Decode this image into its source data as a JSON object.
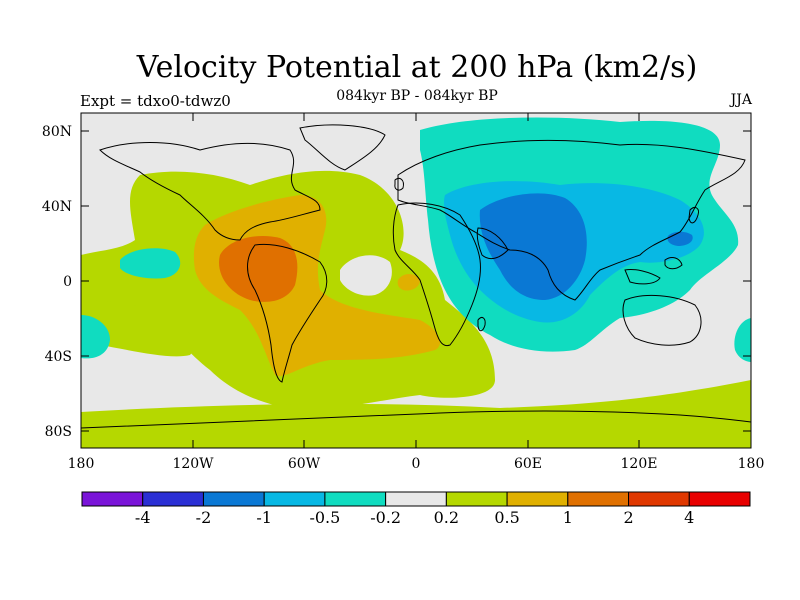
{
  "title": "Velocity Potential at 200 hPa (km2/s)",
  "subtitle": "084kyr BP - 084kyr BP",
  "experiment": "Expt = tdxo0-tdwz0",
  "season": "JJA",
  "lat_ticks": [
    "80N",
    "40N",
    "0",
    "40S",
    "80S"
  ],
  "lon_ticks": [
    "180",
    "120W",
    "60W",
    "0",
    "60E",
    "120E",
    "180"
  ],
  "colorbar": {
    "labels": [
      "-4",
      "-2",
      "-1",
      "-0.5",
      "-0.2",
      "0.2",
      "0.5",
      "1",
      "2",
      "4"
    ],
    "colors": [
      "#7a14d8",
      "#2b2fd4",
      "#0a78d4",
      "#08b8e4",
      "#10dcc0",
      "#e8e8e8",
      "#b5d800",
      "#e0b000",
      "#e07000",
      "#e03800",
      "#e80000"
    ]
  },
  "colors": {
    "ocean_neutral": "#e8e8e8",
    "positive_low": "#b5d800",
    "positive_mid": "#e0b000",
    "positive_high": "#e07000",
    "negative_low": "#10dcc0",
    "negative_mid": "#08b8e4",
    "negative_high": "#0a78d4"
  }
}
